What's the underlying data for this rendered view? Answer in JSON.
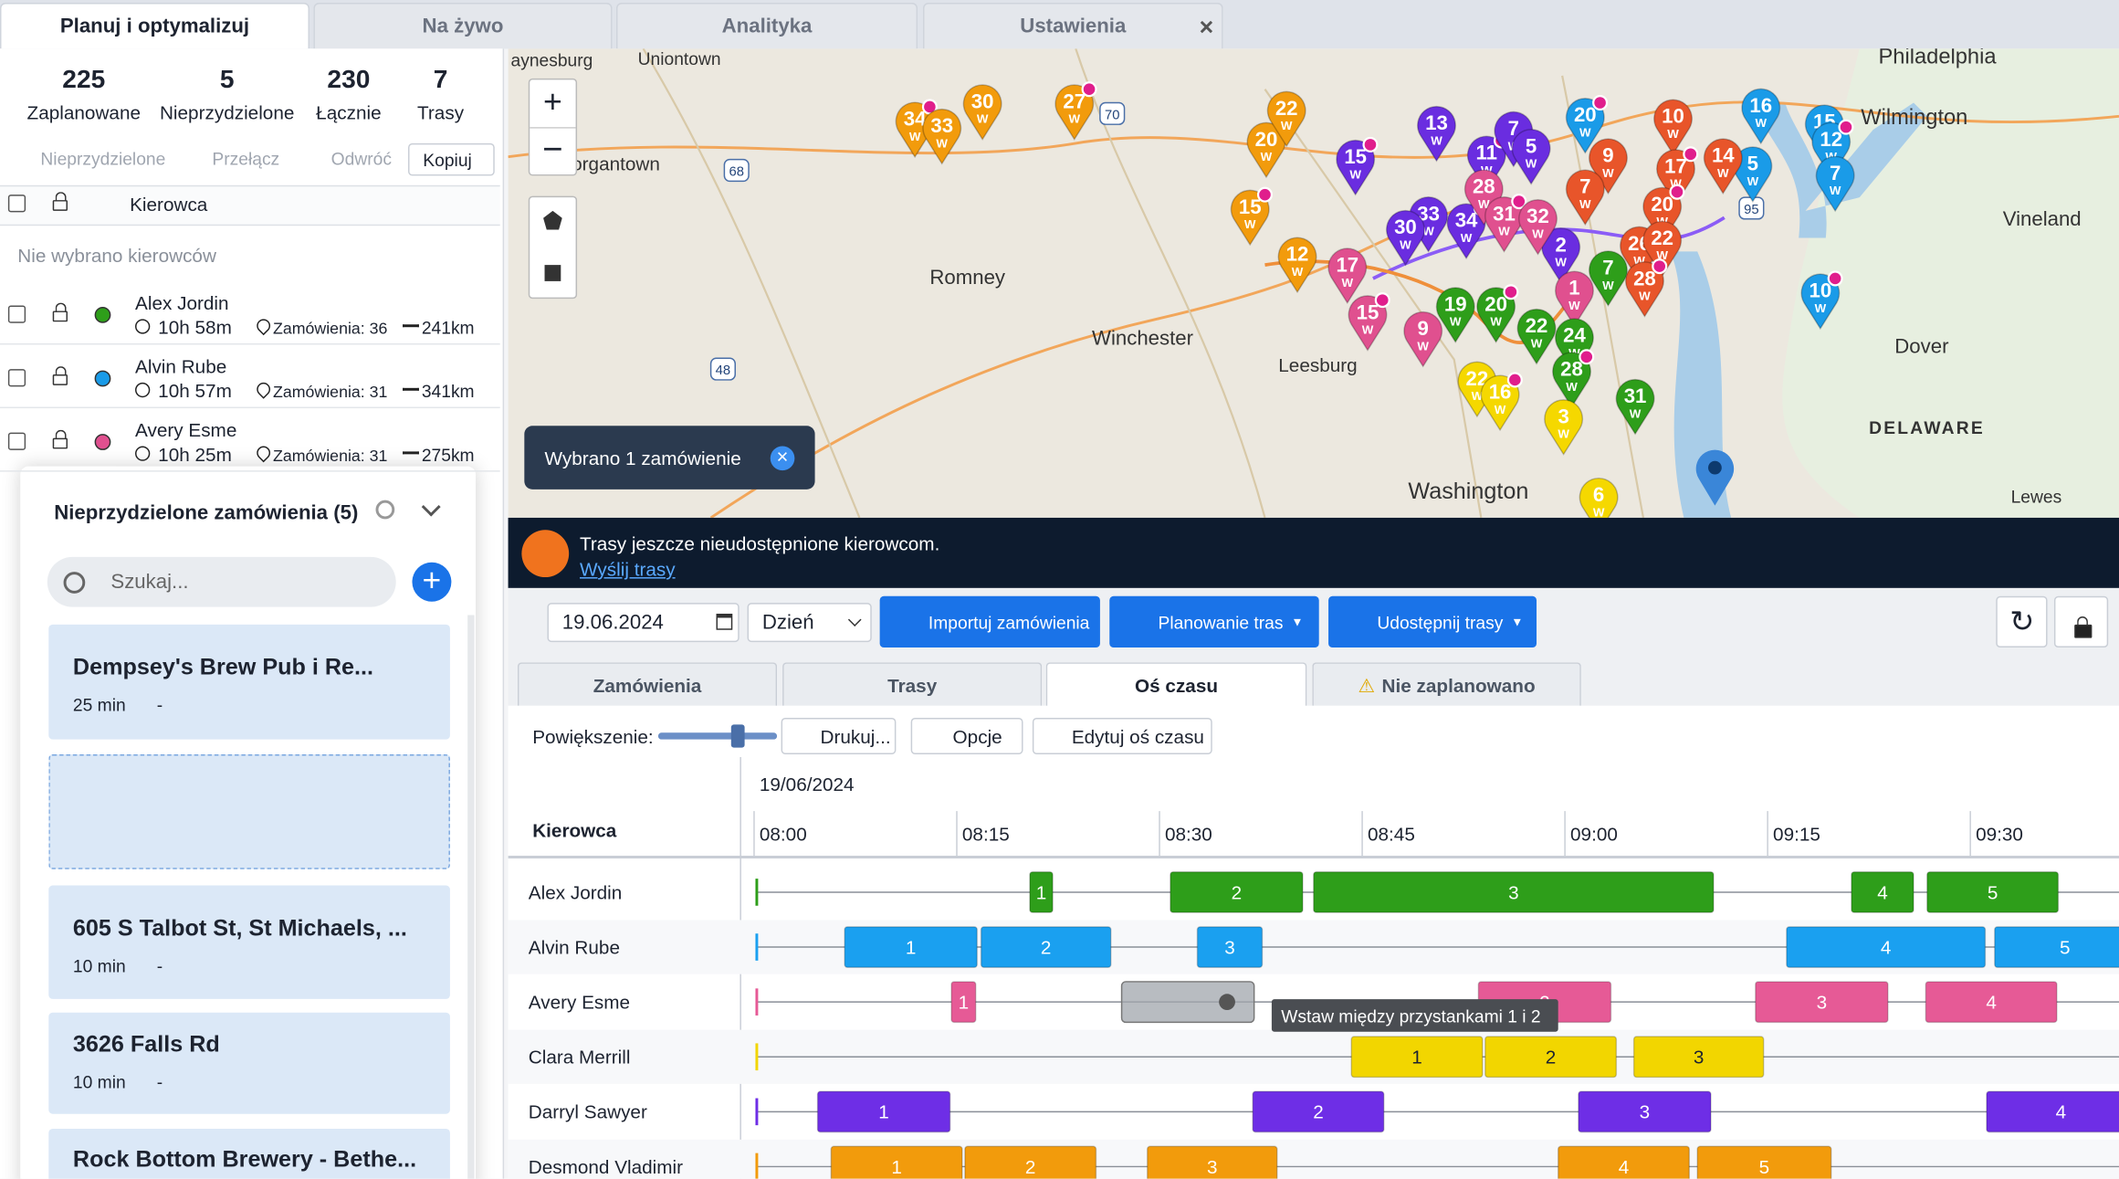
{
  "tabs": [
    {
      "label": "Planuj i optymalizuj"
    },
    {
      "label": "Na żywo"
    },
    {
      "label": "Analityka"
    },
    {
      "label": "Ustawienia"
    }
  ],
  "stats": [
    {
      "value": 225,
      "label": "Zaplanowane"
    },
    {
      "value": 5,
      "label": "Nieprzydzielone"
    },
    {
      "value": 230,
      "label": "Łącznie"
    },
    {
      "value": 7,
      "label": "Trasy"
    }
  ],
  "toolbar": [
    "Nieprzydzielone",
    "Przełącz",
    "Odwróć",
    "Kopiuj"
  ],
  "driver_header": "Kierowca",
  "no_drivers": "Nie wybrano kierowców",
  "drivers": [
    {
      "name": "Alex Jordin",
      "color": "#2e9e1a",
      "time": "10h 58m",
      "orders": "Zamówienia: 36",
      "distance": "241km"
    },
    {
      "name": "Alvin Rube",
      "color": "#1a9be8",
      "time": "10h 57m",
      "orders": "Zamówienia: 31",
      "distance": "341km"
    },
    {
      "name": "Avery Esme",
      "color": "#e0508f",
      "time": "10h 25m",
      "orders": "Zamówienia: 31",
      "distance": "275km"
    }
  ],
  "unassigned": {
    "title": "Nieprzydzielone zamówienia (5)",
    "search": "Szukaj...",
    "orders": [
      {
        "name": "Dempsey's Brew Pub i Re...",
        "duration": "25 min",
        "extra": "-"
      },
      {
        "name": "605 S Talbot St, St Michaels, ...",
        "duration": "10 min",
        "extra": "-"
      },
      {
        "name": "3626 Falls Rd",
        "duration": "10 min",
        "extra": "-"
      },
      {
        "name": "Rock Bottom Brewery - Bethe..."
      }
    ]
  },
  "map": {
    "places": [
      "aynesburg",
      "Uniontown",
      "organtown",
      "Romney",
      "Winchester",
      "Leesburg",
      "Philadelphia",
      "Wilmington",
      "Vineland",
      "Dover",
      "DELAWARE",
      "Washington",
      "Lewes"
    ],
    "shields": [
      "68",
      "70",
      "48",
      "95"
    ],
    "marker_sub": "W",
    "markers": [
      {
        "label": "34",
        "color": "#f29b0c"
      },
      {
        "label": "33",
        "color": "#f29b0c"
      },
      {
        "label": "30",
        "color": "#f29b0c"
      },
      {
        "label": "27",
        "color": "#f29b0c"
      },
      {
        "label": "20",
        "color": "#f29b0c"
      },
      {
        "label": "22",
        "color": "#f29b0c"
      },
      {
        "label": "15",
        "color": "#f29b0c"
      },
      {
        "label": "12",
        "color": "#f29b0c"
      },
      {
        "label": "13",
        "color": "#6a2de0"
      },
      {
        "label": "11",
        "color": "#6a2de0"
      },
      {
        "label": "7",
        "color": "#6a2de0"
      },
      {
        "label": "5",
        "color": "#6a2de0"
      },
      {
        "label": "15",
        "color": "#6a2de0"
      },
      {
        "label": "33",
        "color": "#6a2de0"
      },
      {
        "label": "30",
        "color": "#6a2de0"
      },
      {
        "label": "34",
        "color": "#6a2de0"
      },
      {
        "label": "2",
        "color": "#6a2de0"
      },
      {
        "label": "28",
        "color": "#e0508f"
      },
      {
        "label": "31",
        "color": "#e0508f"
      },
      {
        "label": "32",
        "color": "#e0508f"
      },
      {
        "label": "17",
        "color": "#e0508f"
      },
      {
        "label": "15",
        "color": "#e0508f"
      },
      {
        "label": "1",
        "color": "#e0508f"
      },
      {
        "label": "9",
        "color": "#e0508f"
      },
      {
        "label": "20",
        "color": "#1a9be8"
      },
      {
        "label": "16",
        "color": "#1a9be8"
      },
      {
        "label": "15",
        "color": "#1a9be8"
      },
      {
        "label": "12",
        "color": "#1a9be8"
      },
      {
        "label": "7",
        "color": "#1a9be8"
      },
      {
        "label": "5",
        "color": "#1a9be8"
      },
      {
        "label": "10",
        "color": "#1a9be8"
      },
      {
        "label": "10",
        "color": "#e8552a"
      },
      {
        "label": "9",
        "color": "#e8552a"
      },
      {
        "label": "17",
        "color": "#e8552a"
      },
      {
        "label": "14",
        "color": "#e8552a"
      },
      {
        "label": "7",
        "color": "#e8552a"
      },
      {
        "label": "20",
        "color": "#e8552a"
      },
      {
        "label": "26",
        "color": "#e8552a"
      },
      {
        "label": "22",
        "color": "#e8552a"
      },
      {
        "label": "28",
        "color": "#e8552a"
      },
      {
        "label": "7",
        "color": "#2e9e1a"
      },
      {
        "label": "19",
        "color": "#2e9e1a"
      },
      {
        "label": "20",
        "color": "#2e9e1a"
      },
      {
        "label": "22",
        "color": "#2e9e1a"
      },
      {
        "label": "24",
        "color": "#2e9e1a"
      },
      {
        "label": "28",
        "color": "#2e9e1a"
      },
      {
        "label": "31",
        "color": "#2e9e1a"
      },
      {
        "label": "22",
        "color": "#f5d800"
      },
      {
        "label": "16",
        "color": "#f5d800"
      },
      {
        "label": "3",
        "color": "#f5d800"
      },
      {
        "label": "6",
        "color": "#f5d800"
      }
    ],
    "selection": "Wybrano 1 zamówienie"
  },
  "banner": {
    "text": "Trasy jeszcze nieudostępnione kierowcom.",
    "link": "Wyślij trasy"
  },
  "controls": {
    "date": "19.06.2024",
    "view": "Dzień",
    "buttons": [
      "Importuj zamówienia",
      "Planowanie tras",
      "Udostępnij trasy"
    ]
  },
  "subtabs": [
    "Zamówienia",
    "Trasy",
    "Oś czasu",
    "Nie zaplanowano"
  ],
  "timeline_toolbar": {
    "zoom": "Powiększenie:",
    "buttons": [
      "Drukuj...",
      "Opcje",
      "Edytuj oś czasu"
    ]
  },
  "timeline": {
    "date": "19/06/2024",
    "header": "Kierowca",
    "times": [
      "08:00",
      "08:15",
      "08:30",
      "08:45",
      "09:00",
      "09:15",
      "09:30"
    ],
    "tooltip": "Wstaw między przystankami 1 i 2",
    "rows": [
      {
        "name": "Alex Jordin",
        "color": "#2e9e1a",
        "stops": [
          "1",
          "2",
          "3",
          "4",
          "5"
        ]
      },
      {
        "name": "Alvin Rube",
        "color": "#1aa0f0",
        "stops": [
          "1",
          "2",
          "3",
          "4",
          "5"
        ]
      },
      {
        "name": "Avery Esme",
        "color": "#e65a96",
        "stops": [
          "1",
          "2",
          "3",
          "4"
        ]
      },
      {
        "name": "Clara Merrill",
        "color": "#f2d600",
        "stops": [
          "1",
          "2",
          "3"
        ]
      },
      {
        "name": "Darryl Sawyer",
        "color": "#6e2ee6",
        "stops": [
          "1",
          "2",
          "3",
          "4"
        ]
      },
      {
        "name": "Desmond Vladimir",
        "color": "#f29b0c",
        "stops": [
          "1",
          "2",
          "3",
          "4",
          "5"
        ]
      }
    ]
  }
}
